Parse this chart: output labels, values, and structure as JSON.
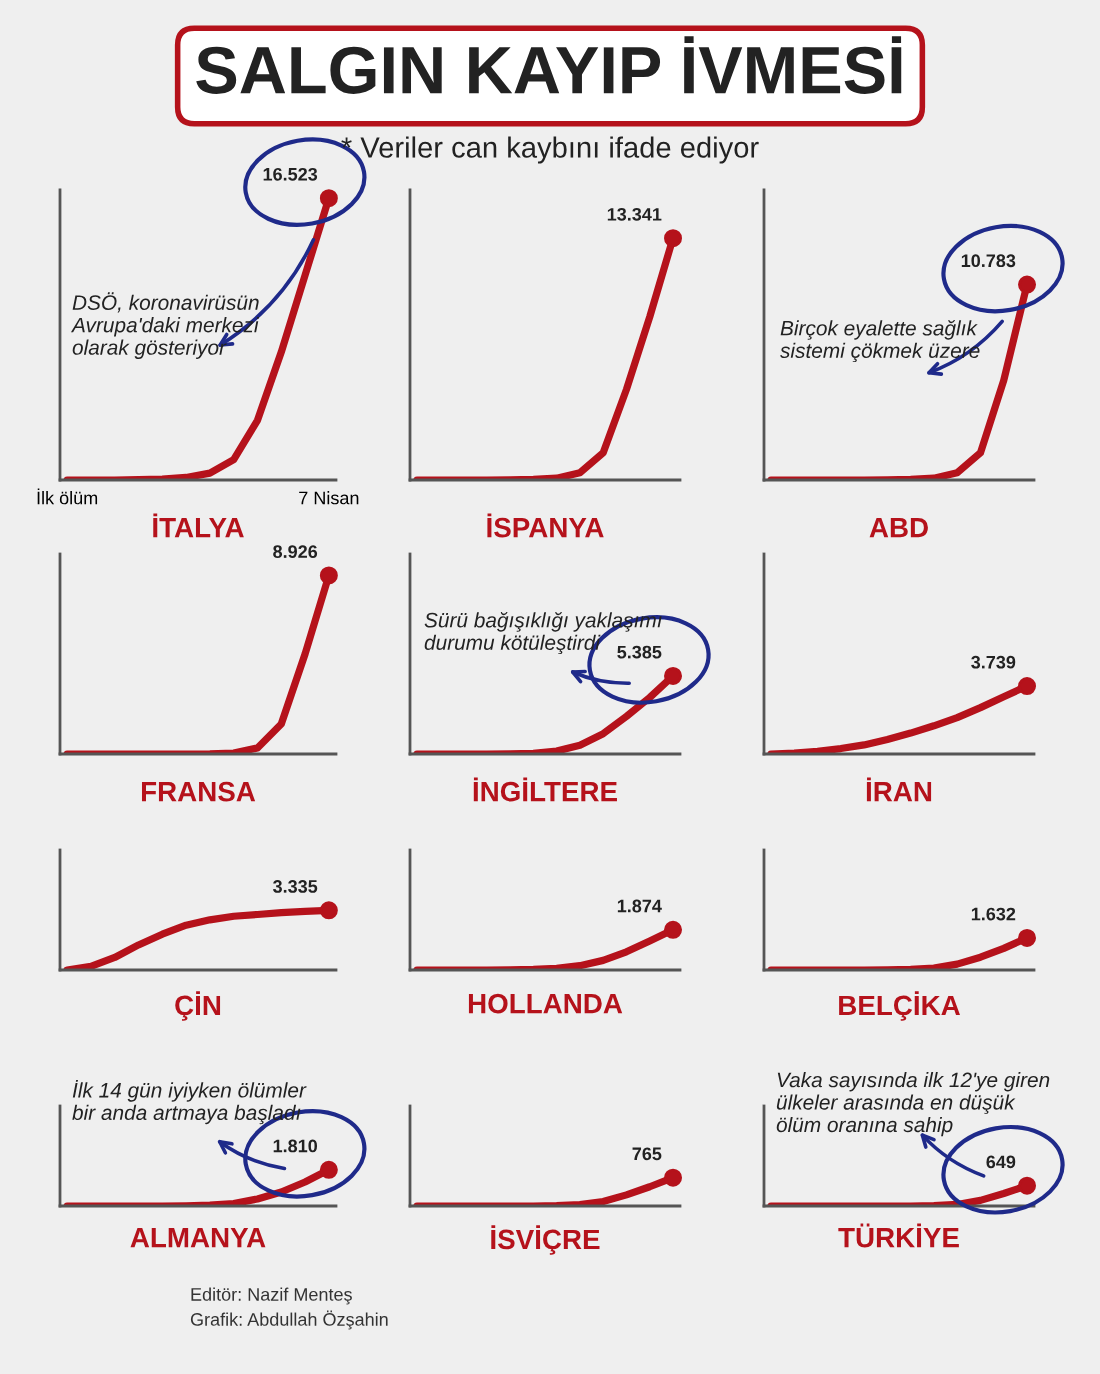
{
  "chart_data": [
    {
      "type": "other",
      "title": "SALGIN KAYIP İVMESİ",
      "subtitle": "* Veriler can kaybını ifade ediyor",
      "annotations": [
        "Editör: Nazif Menteş",
        "Grafik: Abdullah Özşahin"
      ]
    },
    {
      "type": "line",
      "title": "İTALYA",
      "color": "#b5121b",
      "categories": [
        "İlk ölüm",
        null,
        null,
        null,
        null,
        null,
        null,
        null,
        null,
        null,
        null,
        "7 Nisan"
      ],
      "values": [
        0,
        0,
        0,
        20,
        50,
        150,
        400,
        1200,
        3500,
        7500,
        12000,
        16523
      ],
      "value_labels": [
        null,
        null,
        null,
        null,
        null,
        null,
        null,
        null,
        null,
        null,
        null,
        "16.523"
      ],
      "ylim": [
        0,
        17000
      ],
      "annotations": [
        "DSÖ, koronavirüsün\nAvrupa'daki merkezi\nolarak gösteriyor"
      ]
    },
    {
      "type": "line",
      "title": "İSPANYA",
      "color": "#b5121b",
      "categories": [
        null,
        null,
        null,
        null,
        null,
        null,
        null,
        null,
        null,
        null,
        null,
        null
      ],
      "values": [
        0,
        0,
        0,
        0,
        10,
        30,
        100,
        400,
        1500,
        5000,
        9000,
        13341
      ],
      "value_labels": [
        null,
        null,
        null,
        null,
        null,
        null,
        null,
        null,
        null,
        null,
        null,
        "13.341"
      ],
      "ylim": [
        0,
        16000
      ]
    },
    {
      "type": "line",
      "title": "ABD",
      "color": "#b5121b",
      "categories": [
        null,
        null,
        null,
        null,
        null,
        null,
        null,
        null,
        null,
        null,
        null,
        null
      ],
      "values": [
        0,
        0,
        0,
        0,
        0,
        10,
        30,
        100,
        400,
        1500,
        5500,
        10783
      ],
      "value_labels": [
        null,
        null,
        null,
        null,
        null,
        null,
        null,
        null,
        null,
        null,
        null,
        "10.783"
      ],
      "ylim": [
        0,
        16000
      ],
      "annotations": [
        "Birçok eyalette sağlık\nsistemi çökmek üzere"
      ]
    },
    {
      "type": "line",
      "title": "FRANSA",
      "color": "#b5121b",
      "categories": [
        null,
        null,
        null,
        null,
        null,
        null,
        null,
        null,
        null,
        null,
        null,
        null
      ],
      "values": [
        0,
        0,
        0,
        0,
        0,
        0,
        10,
        50,
        300,
        1500,
        5000,
        8926
      ],
      "value_labels": [
        null,
        null,
        null,
        null,
        null,
        null,
        null,
        null,
        null,
        null,
        null,
        "8.926"
      ],
      "ylim": [
        0,
        10000
      ]
    },
    {
      "type": "line",
      "title": "İNGİLTERE",
      "color": "#b5121b",
      "categories": [
        null,
        null,
        null,
        null,
        null,
        null,
        null,
        null,
        null,
        null,
        null,
        null
      ],
      "values": [
        0,
        0,
        0,
        0,
        10,
        50,
        200,
        600,
        1400,
        2600,
        3900,
        5385
      ],
      "value_labels": [
        null,
        null,
        null,
        null,
        null,
        null,
        null,
        null,
        null,
        null,
        null,
        "5.385"
      ],
      "ylim": [
        0,
        13800
      ],
      "annotations": [
        "Sürü bağışıklığı yaklaşımı\ndurumu kötüleştirdi"
      ]
    },
    {
      "type": "line",
      "title": "İRAN",
      "color": "#b5121b",
      "categories": [
        null,
        null,
        null,
        null,
        null,
        null,
        null,
        null,
        null,
        null,
        null,
        null
      ],
      "values": [
        0,
        50,
        150,
        300,
        500,
        800,
        1150,
        1550,
        2000,
        2550,
        3150,
        3739
      ],
      "value_labels": [
        null,
        null,
        null,
        null,
        null,
        null,
        null,
        null,
        null,
        null,
        null,
        "3.739"
      ],
      "ylim": [
        0,
        11000
      ]
    },
    {
      "type": "line",
      "title": "ÇİN",
      "color": "#b5121b",
      "categories": [
        null,
        null,
        null,
        null,
        null,
        null,
        null,
        null,
        null,
        null,
        null,
        null
      ],
      "values": [
        0,
        200,
        700,
        1400,
        2000,
        2500,
        2800,
        3000,
        3100,
        3200,
        3270,
        3335
      ],
      "value_labels": [
        null,
        null,
        null,
        null,
        null,
        null,
        null,
        null,
        null,
        null,
        null,
        "3.335"
      ],
      "ylim": [
        0,
        6700
      ]
    },
    {
      "type": "line",
      "title": "HOLLANDA",
      "color": "#b5121b",
      "categories": [
        null,
        null,
        null,
        null,
        null,
        null,
        null,
        null,
        null,
        null,
        null,
        null
      ],
      "values": [
        0,
        0,
        0,
        0,
        10,
        30,
        80,
        200,
        450,
        850,
        1350,
        1874
      ],
      "value_labels": [
        null,
        null,
        null,
        null,
        null,
        null,
        null,
        null,
        null,
        null,
        null,
        "1.874"
      ],
      "ylim": [
        0,
        5600
      ]
    },
    {
      "type": "line",
      "title": "BELÇİKA",
      "color": "#b5121b",
      "categories": [
        null,
        null,
        null,
        null,
        null,
        null,
        null,
        null,
        null,
        null,
        null,
        null
      ],
      "values": [
        0,
        0,
        0,
        0,
        0,
        10,
        30,
        100,
        300,
        650,
        1100,
        1632
      ],
      "value_labels": [
        null,
        null,
        null,
        null,
        null,
        null,
        null,
        null,
        null,
        null,
        null,
        "1.632"
      ],
      "ylim": [
        0,
        6100
      ]
    },
    {
      "type": "line",
      "title": "ALMANYA",
      "color": "#b5121b",
      "categories": [
        null,
        null,
        null,
        null,
        null,
        null,
        null,
        null,
        null,
        null,
        null,
        null
      ],
      "values": [
        0,
        0,
        0,
        0,
        0,
        10,
        40,
        120,
        350,
        700,
        1200,
        1810
      ],
      "value_labels": [
        null,
        null,
        null,
        null,
        null,
        null,
        null,
        null,
        null,
        null,
        null,
        "1.810"
      ],
      "ylim": [
        0,
        5000
      ],
      "annotations": [
        "İlk 14 gün iyiyken ölümler\nbir anda artmaya başladı"
      ]
    },
    {
      "type": "line",
      "title": "İSVİÇRE",
      "color": "#b5121b",
      "categories": [
        null,
        null,
        null,
        null,
        null,
        null,
        null,
        null,
        null,
        null,
        null,
        null
      ],
      "values": [
        0,
        0,
        0,
        0,
        0,
        0,
        10,
        40,
        120,
        300,
        520,
        765
      ],
      "value_labels": [
        null,
        null,
        null,
        null,
        null,
        null,
        null,
        null,
        null,
        null,
        null,
        "765"
      ],
      "ylim": [
        0,
        2700
      ]
    },
    {
      "type": "line",
      "title": "TÜRKİYE",
      "color": "#b5121b",
      "categories": [
        null,
        null,
        null,
        null,
        null,
        null,
        null,
        null,
        null,
        null,
        null,
        null
      ],
      "values": [
        0,
        0,
        0,
        0,
        0,
        0,
        0,
        10,
        50,
        180,
        400,
        649
      ],
      "value_labels": [
        null,
        null,
        null,
        null,
        null,
        null,
        null,
        null,
        null,
        null,
        null,
        "649"
      ],
      "ylim": [
        0,
        3200
      ],
      "annotations": [
        "Vaka sayısında ilk 12'ye giren\nülkeler arasında en düşük\nölüm oranına sahip"
      ]
    }
  ]
}
